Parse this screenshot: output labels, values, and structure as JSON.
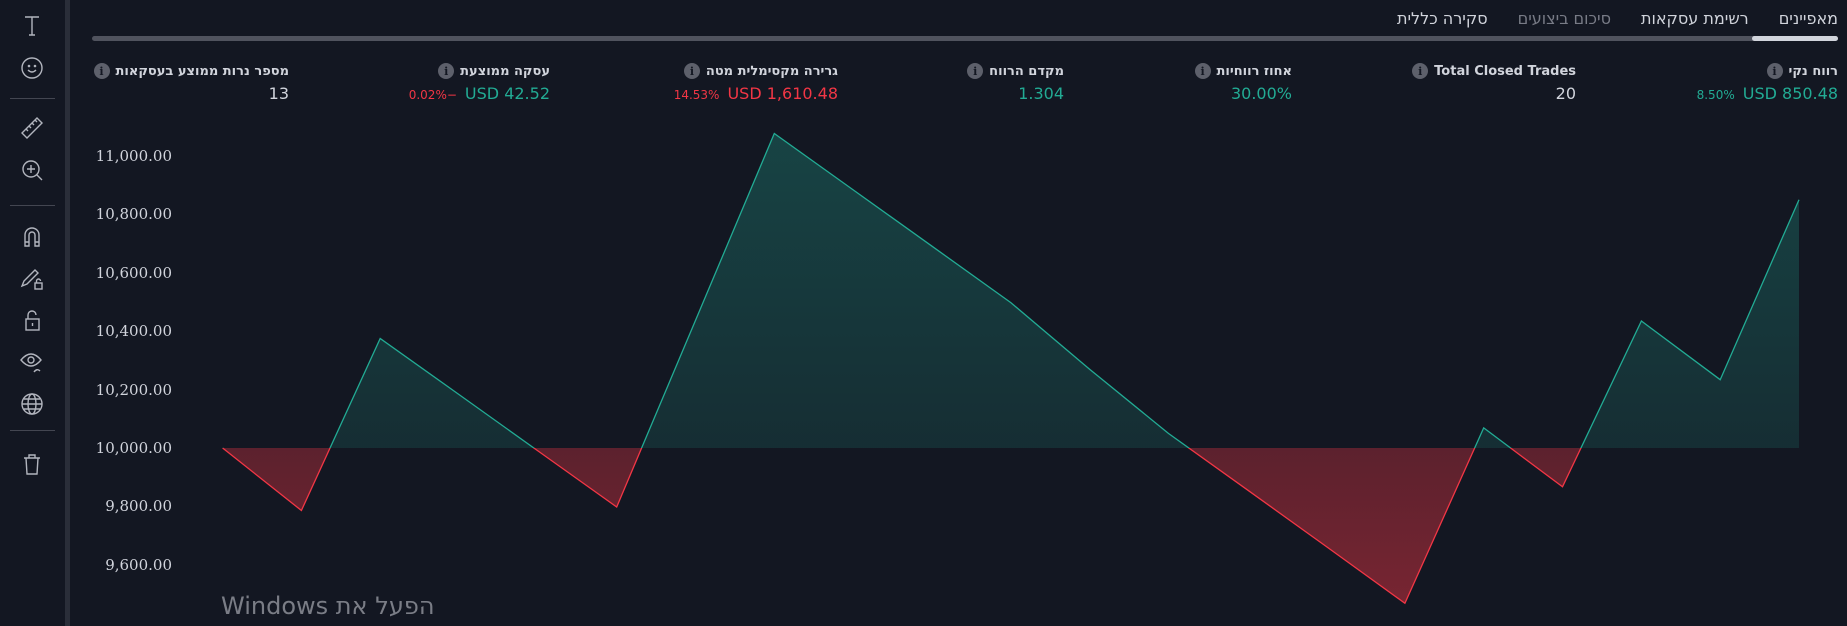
{
  "toolbar": {
    "tools": [
      "text-icon",
      "emoji-icon",
      "ruler-icon",
      "zoom-in-icon",
      "magnet-icon",
      "lock-drawing-icon",
      "unlock-icon",
      "eye-icon",
      "globe-icon",
      "trash-icon"
    ]
  },
  "tabs": [
    {
      "label": "סקירה כללית",
      "active": true
    },
    {
      "label": "סיכום ביצועים",
      "active": false
    },
    {
      "label": "רשימת עסקאות",
      "active": false
    },
    {
      "label": "מאפיינים",
      "active": false
    }
  ],
  "stats": [
    {
      "label": "רווח נקי",
      "value": "850.48 USD",
      "percent": "8.50%",
      "value_color": "green",
      "percent_color": "green"
    },
    {
      "label": "Total Closed Trades",
      "value": "20",
      "percent": "",
      "value_color": "plain",
      "percent_color": "plain"
    },
    {
      "label": "אחוז רווחיות",
      "value": "30.00%",
      "percent": "",
      "value_color": "green",
      "percent_color": "green"
    },
    {
      "label": "מקדם הרווח",
      "value": "1.304",
      "percent": "",
      "value_color": "green",
      "percent_color": "green"
    },
    {
      "label": "גרירה מקסימלית מטה",
      "value": "1,610.48 USD",
      "percent": "14.53%",
      "value_color": "red",
      "percent_color": "red"
    },
    {
      "label": "עסקה ממוצעת",
      "value": "42.52 USD",
      "percent": "−0.02%",
      "value_color": "green",
      "percent_color": "red"
    },
    {
      "label": "מספר נרות ממוצע בעסקאות",
      "value": "13",
      "percent": "",
      "value_color": "plain",
      "percent_color": "plain"
    }
  ],
  "info_glyph": "i",
  "colors": {
    "background": "#131722",
    "positive": "#22ab94",
    "negative": "#f23645",
    "text": "#d1d4dc"
  },
  "chart_data": {
    "type": "area",
    "baseline": 10000,
    "x": [
      0,
      1,
      2,
      3,
      4,
      5,
      6,
      7,
      8,
      9,
      10,
      11,
      12,
      13,
      14,
      15,
      16,
      17,
      18,
      19,
      20
    ],
    "values": [
      10000,
      9786,
      10375,
      10183,
      9990,
      9798,
      10437,
      11077,
      10884,
      10691,
      10498,
      10270,
      10050,
      9857,
      9663,
      9468,
      10069,
      9867,
      10435,
      10234,
      10850.48
    ],
    "ytick_labels": [
      "11,000.00",
      "10,800.00",
      "10,600.00",
      "10,400.00",
      "10,200.00",
      "10,000.00",
      "9,800.00",
      "9,600.00"
    ],
    "yticks": [
      11000,
      10800,
      10600,
      10400,
      10200,
      10000,
      9800,
      9600
    ],
    "grid": false
  },
  "watermark": "הפעל את Windows"
}
